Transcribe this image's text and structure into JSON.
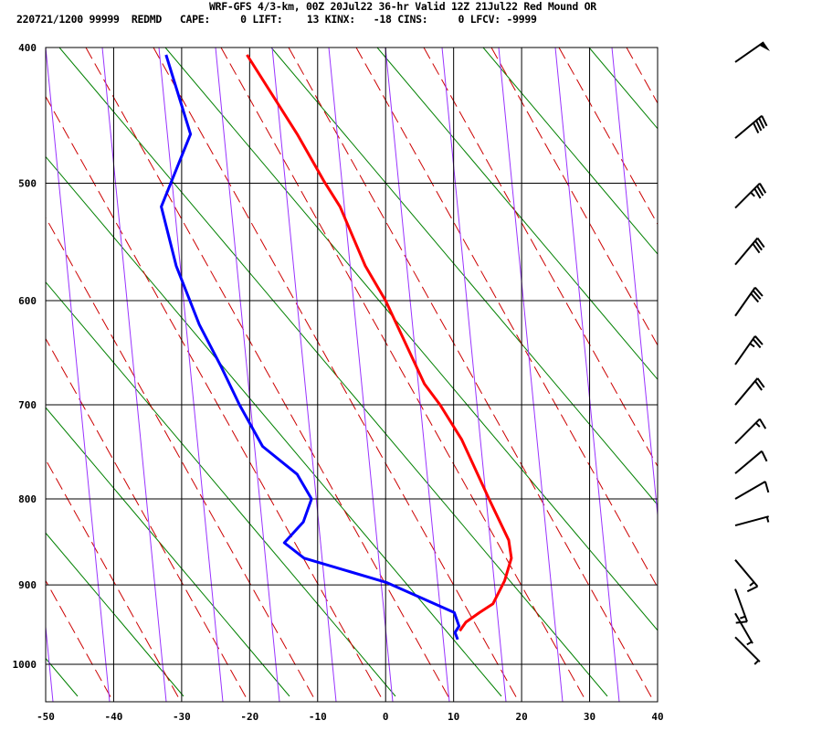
{
  "header": {
    "line1": "WRF-GFS 4/3-km, 00Z 20Jul22 36-hr Valid 12Z 21Jul22 Red Mound OR",
    "line2": "220721/1200 99999  REDMD   CAPE:     0 LIFT:    13 KINX:   -18 CINS:     0 LFCV: -9999"
  },
  "chart_data": {
    "type": "line",
    "title": "",
    "xlabel": "",
    "ylabel": "",
    "xlim": [
      -50,
      40
    ],
    "ylim": [
      1048,
      400
    ],
    "x_ticks": [
      "-50",
      "-40",
      "-30",
      "-20",
      "-10",
      "0",
      "10",
      "20",
      "30",
      "40"
    ],
    "y_ticks": [
      "400",
      "500",
      "600",
      "700",
      "800",
      "900",
      "1000"
    ],
    "grid": true,
    "y_scale": "pressure (p^0.286)",
    "colors": {
      "temperature": "#ff0000",
      "dewpoint": "#0000ff",
      "dry_adiabat": "#008000",
      "moist_adiabat": "#cc0000",
      "mixing_ratio": "#9933ff",
      "grid": "#000000"
    },
    "series": [
      {
        "key": "temperature",
        "pressure": [
          405,
          462,
          499,
          519,
          569,
          600,
          679,
          700,
          736,
          800,
          847,
          868,
          895,
          923,
          934,
          946,
          957
        ],
        "values": [
          -20.4,
          -13,
          -9,
          -6.7,
          -3,
          0,
          5.7,
          8,
          11.2,
          15.2,
          18.1,
          18.5,
          17.5,
          15.8,
          13.8,
          11.8,
          10.9
        ]
      },
      {
        "key": "dewpoint",
        "pressure": [
          405,
          462,
          519,
          569,
          622,
          662,
          700,
          743,
          773,
          800,
          826,
          850,
          868,
          897,
          934,
          951,
          959,
          968
        ],
        "values": [
          -32.3,
          -28.7,
          -33,
          -30.8,
          -27.4,
          -24.2,
          -21.5,
          -18.1,
          -13,
          -10.9,
          -12.1,
          -14.9,
          -12,
          0.1,
          10.1,
          10.8,
          10.2,
          10.6
        ]
      }
    ],
    "wind_barbs": [
      {
        "pressure": 410,
        "direction": 235,
        "speed": 50
      },
      {
        "pressure": 465,
        "direction": 230,
        "speed": 40
      },
      {
        "pressure": 520,
        "direction": 225,
        "speed": 35
      },
      {
        "pressure": 568,
        "direction": 220,
        "speed": 30
      },
      {
        "pressure": 614,
        "direction": 215,
        "speed": 30
      },
      {
        "pressure": 660,
        "direction": 215,
        "speed": 25
      },
      {
        "pressure": 700,
        "direction": 220,
        "speed": 20
      },
      {
        "pressure": 740,
        "direction": 225,
        "speed": 15
      },
      {
        "pressure": 772,
        "direction": 230,
        "speed": 10
      },
      {
        "pressure": 800,
        "direction": 240,
        "speed": 10
      },
      {
        "pressure": 830,
        "direction": 255,
        "speed": 5
      },
      {
        "pressure": 870,
        "direction": 320,
        "speed": 15
      },
      {
        "pressure": 905,
        "direction": 340,
        "speed": 15
      },
      {
        "pressure": 935,
        "direction": 330,
        "speed": 5
      },
      {
        "pressure": 965,
        "direction": 315,
        "speed": 5
      }
    ]
  }
}
